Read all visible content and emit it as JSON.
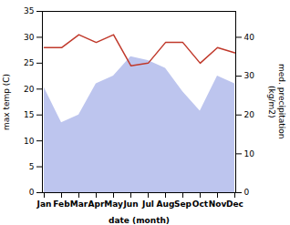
{
  "chart_data": {
    "type": "line",
    "categories": [
      "Jan",
      "Feb",
      "Mar",
      "Apr",
      "May",
      "Jun",
      "Jul",
      "Aug",
      "Sep",
      "Oct",
      "Nov",
      "Dec"
    ],
    "xlabel": "date (month)",
    "ylabel": "max temp (C)",
    "y2label": "med. precipitation\n(kg/m2)",
    "ylim": [
      0,
      35
    ],
    "yticks": [
      0,
      5,
      10,
      15,
      20,
      25,
      30,
      35
    ],
    "y2lim": [
      0,
      46.67
    ],
    "y2ticks": [
      0,
      10,
      20,
      30,
      40
    ],
    "series": [
      {
        "type": "area",
        "axis": "y2",
        "color": "#bdc5ee",
        "values": [
          27,
          18,
          20,
          28,
          30,
          35,
          34,
          32,
          26,
          21,
          30,
          28
        ]
      },
      {
        "type": "line",
        "color": "#c0392b",
        "values": [
          28.0,
          28.0,
          30.5,
          29.0,
          30.5,
          24.5,
          25.0,
          29.0,
          29.0,
          25.0,
          28.0,
          27.0
        ]
      }
    ]
  }
}
